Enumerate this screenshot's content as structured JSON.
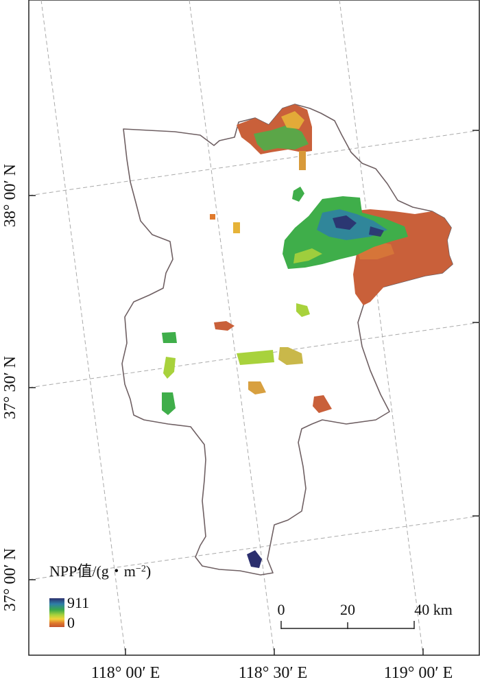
{
  "axes": {
    "lon_labels": [
      "118° 00′ E",
      "118° 30′ E",
      "119° 00′ E"
    ],
    "lat_labels": [
      "38° 00′ N",
      "37° 30′ N",
      "37° 00′ N"
    ]
  },
  "legend": {
    "title": "NPP值/(g・m",
    "title_sup": "−2",
    "title_close": ")",
    "max_label": "911",
    "min_label": "0",
    "value_range": [
      0,
      911
    ],
    "colors": [
      "#2b2f6e",
      "#2e7fa8",
      "#3aa84a",
      "#a8d23c",
      "#f2d23a",
      "#e07a2c",
      "#c2532e"
    ]
  },
  "scale_bar": {
    "labels": [
      "0",
      "20",
      "40 km"
    ]
  },
  "colors": {
    "boundary": "#6e5f62",
    "graticule": "#a9a9a9",
    "npp_low": "#c9603a",
    "npp_mid": "#3fae4a",
    "npp_high": "#2b2f6e"
  }
}
